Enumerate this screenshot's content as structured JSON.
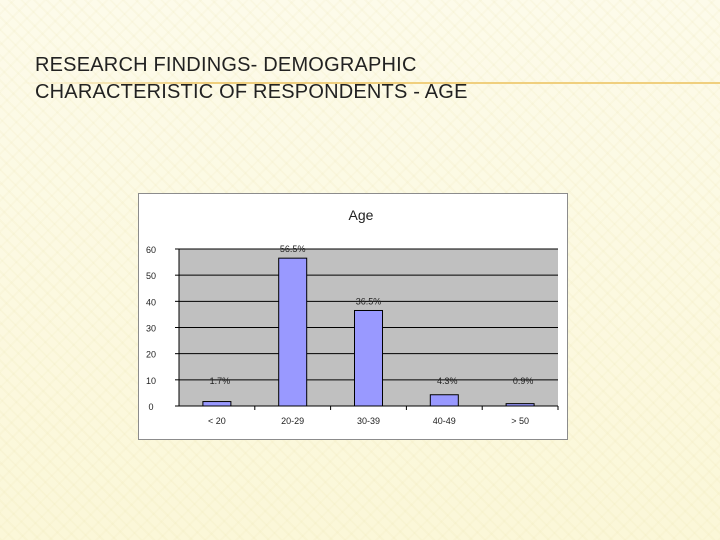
{
  "slide": {
    "title_line1": "RESEARCH FINDINGS- DEMOGRAPHIC",
    "title_line2": "CHARACTERISTIC OF RESPONDENTS - AGE"
  },
  "colors": {
    "bar_fill": "#9999ff",
    "plot_bg": "#c0c0c0",
    "grid": "#000000"
  },
  "chart_data": {
    "type": "bar",
    "title": "Age",
    "categories": [
      "< 20",
      "20-29",
      "30-39",
      "40-49",
      "> 50"
    ],
    "values": [
      1.7,
      56.5,
      36.5,
      4.3,
      0.9
    ],
    "data_labels": [
      "1.7%",
      "56.5%",
      "36.5%",
      "4.3%",
      "0.9%"
    ],
    "y_ticks": [
      0,
      10,
      20,
      30,
      40,
      50,
      60
    ],
    "ylim": [
      0,
      60
    ],
    "xlabel": "",
    "ylabel": "",
    "grid": true,
    "legend": false
  }
}
